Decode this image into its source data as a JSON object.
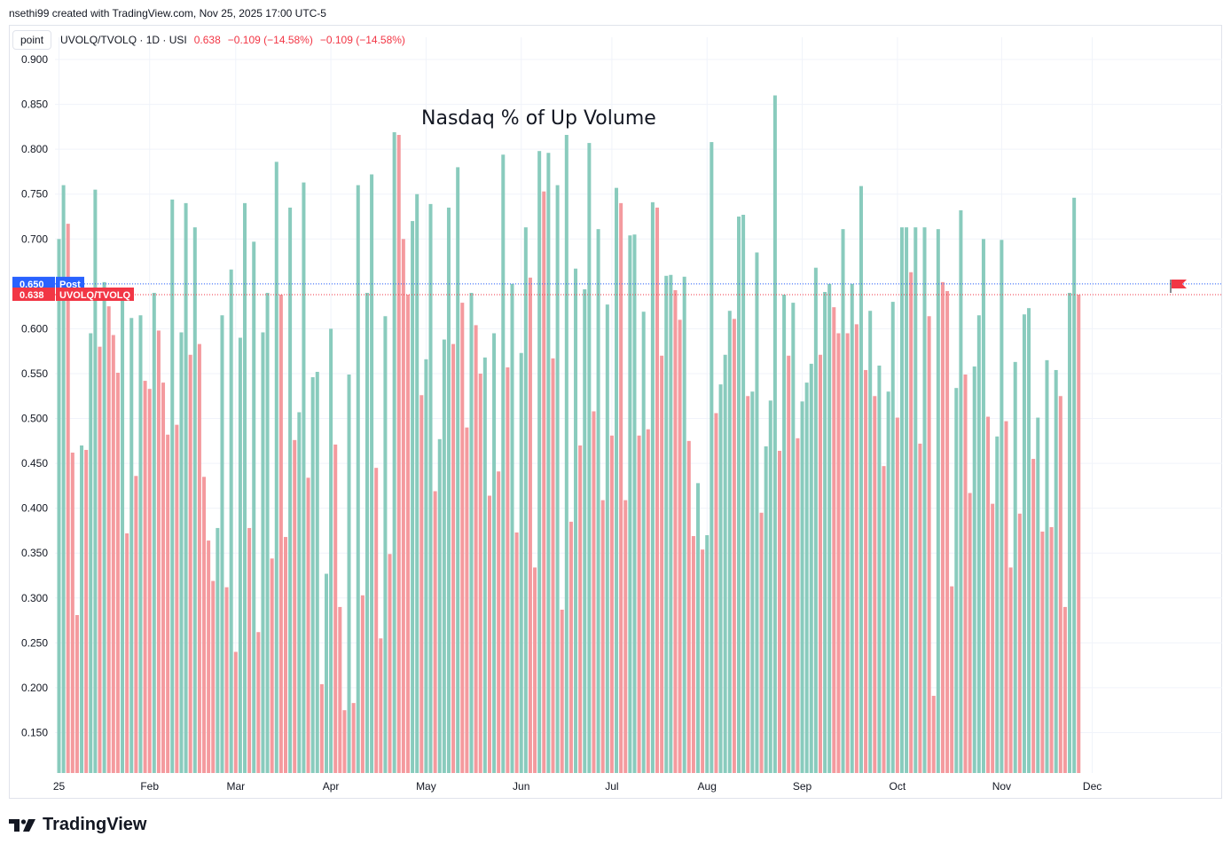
{
  "header": {
    "credit": "nsethi99 created with TradingView.com, Nov 25, 2025 17:00 UTC-5"
  },
  "legend": {
    "point_button": "point",
    "symbol": "UVOLQ/TVOLQ · 1D · USI",
    "last": "0.638",
    "change": "−0.109 (−14.58%)",
    "change2": "−0.109 (−14.58%)"
  },
  "price_tags": {
    "post_value": "0.650",
    "post_label": "Post",
    "last_value": "0.638",
    "last_label": "UVOLQ/TVOLQ"
  },
  "footer": {
    "brand": "TradingView"
  },
  "colors": {
    "up": "#89cbbd",
    "down": "#f49a9e",
    "post_line": "#2962ff",
    "last_line": "#f23645"
  },
  "chart_data": {
    "type": "bar",
    "title": "Nasdaq % of Up Volume",
    "xlabel": "",
    "ylabel": "",
    "ylim": [
      0.105,
      0.905
    ],
    "yticks": [
      "0.900",
      "0.850",
      "0.800",
      "0.750",
      "0.700",
      "0.650",
      "0.600",
      "0.550",
      "0.500",
      "0.450",
      "0.400",
      "0.350",
      "0.300",
      "0.250",
      "0.200",
      "0.150"
    ],
    "xticks": [
      {
        "label": "25",
        "index": 0
      },
      {
        "label": "Feb",
        "index": 20
      },
      {
        "label": "Mar",
        "index": 39
      },
      {
        "label": "Apr",
        "index": 60
      },
      {
        "label": "May",
        "index": 81
      },
      {
        "label": "Jun",
        "index": 102
      },
      {
        "label": "Jul",
        "index": 122
      },
      {
        "label": "Aug",
        "index": 143
      },
      {
        "label": "Sep",
        "index": 164
      },
      {
        "label": "Oct",
        "index": 185
      },
      {
        "label": "Nov",
        "index": 208
      },
      {
        "label": "Dec",
        "index": 228
      }
    ],
    "post_value": 0.65,
    "last_value": 0.638,
    "values": [
      0.7,
      0.76,
      0.717,
      0.462,
      0.281,
      0.47,
      0.465,
      0.595,
      0.755,
      0.58,
      0.652,
      0.625,
      0.593,
      0.551,
      0.635,
      0.372,
      0.612,
      0.436,
      0.615,
      0.542,
      0.533,
      0.64,
      0.598,
      0.54,
      0.482,
      0.744,
      0.493,
      0.596,
      0.74,
      0.571,
      0.713,
      0.583,
      0.435,
      0.364,
      0.319,
      0.378,
      0.615,
      0.312,
      0.666,
      0.24,
      0.59,
      0.74,
      0.378,
      0.697,
      0.262,
      0.596,
      0.64,
      0.344,
      0.786,
      0.638,
      0.368,
      0.735,
      0.476,
      0.507,
      0.763,
      0.434,
      0.546,
      0.552,
      0.204,
      0.327,
      0.6,
      0.471,
      0.29,
      0.175,
      0.549,
      0.183,
      0.76,
      0.303,
      0.64,
      0.772,
      0.445,
      0.255,
      0.614,
      0.349,
      0.819,
      0.816,
      0.7,
      0.638,
      0.72,
      0.75,
      0.526,
      0.566,
      0.739,
      0.419,
      0.477,
      0.588,
      0.735,
      0.583,
      0.78,
      0.629,
      0.49,
      0.64,
      0.604,
      0.55,
      0.568,
      0.414,
      0.595,
      0.441,
      0.794,
      0.557,
      0.65,
      0.373,
      0.573,
      0.713,
      0.657,
      0.334,
      0.798,
      0.753,
      0.796,
      0.567,
      0.76,
      0.287,
      0.816,
      0.385,
      0.667,
      0.47,
      0.644,
      0.807,
      0.508,
      0.711,
      0.409,
      0.627,
      0.481,
      0.757,
      0.74,
      0.409,
      0.704,
      0.705,
      0.481,
      0.619,
      0.488,
      0.741,
      0.735,
      0.57,
      0.659,
      0.66,
      0.643,
      0.61,
      0.658,
      0.475,
      0.369,
      0.428,
      0.354,
      0.37,
      0.808,
      0.506,
      0.538,
      0.571,
      0.62,
      0.611,
      0.725,
      0.727,
      0.525,
      0.53,
      0.685,
      0.395,
      0.469,
      0.52,
      0.86,
      0.464,
      0.638,
      0.57,
      0.629,
      0.478,
      0.519,
      0.54,
      0.561,
      0.668,
      0.571,
      0.641,
      0.65,
      0.624,
      0.595,
      0.711,
      0.595,
      0.65,
      0.605,
      0.759,
      0.554,
      0.62,
      0.525,
      0.559,
      0.447,
      0.53,
      0.63,
      0.501,
      0.713,
      0.713,
      0.663,
      0.713,
      0.472,
      0.713,
      0.614,
      0.191,
      0.711,
      0.652,
      0.642,
      0.313,
      0.534,
      0.732,
      0.549,
      0.417,
      0.558,
      0.615,
      0.7,
      0.502,
      0.405,
      0.48,
      0.699,
      0.497,
      0.334,
      0.563,
      0.394,
      0.616,
      0.623,
      0.455,
      0.501,
      0.374,
      0.565,
      0.379,
      0.554,
      0.525,
      0.29,
      0.64,
      0.746,
      0.638
    ]
  }
}
